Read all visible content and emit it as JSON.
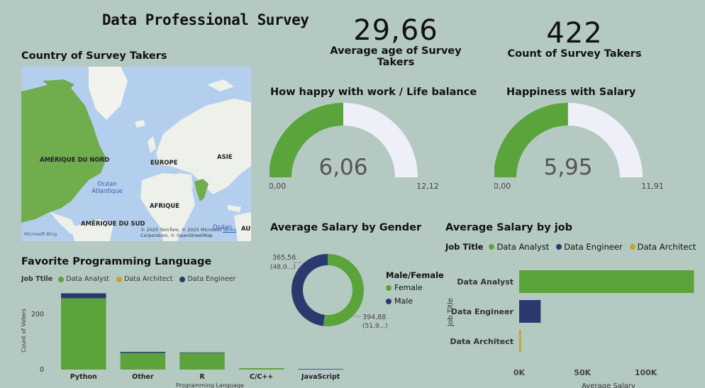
{
  "title": "Data Professional Survey",
  "kpis": {
    "age": {
      "value": "29,66",
      "label": "Average age of Survey Takers"
    },
    "count": {
      "value": "422",
      "label": "Count of Survey Takers"
    }
  },
  "map": {
    "title": "Country of Survey Takers",
    "labels": {
      "north_america": "AMÉRIQUE DU NORD",
      "europe": "EUROPE",
      "asia": "ASIE",
      "africa": "AFRIQUE",
      "south_america": "AMÉRIQUE DU SUD",
      "australia": "AUS",
      "atlantic": "Océan Atlantique",
      "ocean2": "Océan"
    },
    "attribution": "© 2025 TomTom, © 2025 Microsoft Corporation, © OpenStreetMap",
    "terms": "Terms",
    "brand": "Microsoft Bing"
  },
  "colors": {
    "analyst": "#5ba33b",
    "engineer": "#2b3a6e",
    "architect": "#c9a227",
    "gauge_rest": "#efeff9",
    "background": "#b5c9c3"
  },
  "chart_data": [
    {
      "type": "gauge",
      "title": "How happy with work / Life balance",
      "value": 6.06,
      "value_label": "6,06",
      "min": 0,
      "min_label": "0,00",
      "max": 12.12,
      "max_label": "12,12"
    },
    {
      "type": "gauge",
      "title": "Happiness with Salary",
      "value": 5.95,
      "value_label": "5,95",
      "min": 0,
      "min_label": "0,00",
      "max": 11.91,
      "max_label": "11,91"
    },
    {
      "type": "pie",
      "title": "Average Salary by Gender",
      "legend_title": "Male/Female",
      "slices": [
        {
          "name": "Female",
          "value": 394.88,
          "label": "394,88",
          "sublabel": "(51,9...)",
          "color": "#5ba33b"
        },
        {
          "name": "Male",
          "value": 365.56,
          "label": "365,56",
          "sublabel": "(48,0...)",
          "color": "#2b3a6e"
        }
      ]
    },
    {
      "type": "bar",
      "orientation": "vertical",
      "stacked": true,
      "title": "Favorite Programming Language",
      "legend_title": "Job Ttile",
      "xlabel": "Programming Language",
      "ylabel": "Count of Voters",
      "ylim": [
        0,
        290
      ],
      "yticks": [
        0,
        200
      ],
      "categories": [
        "Python",
        "Other",
        "R",
        "C/C++",
        "JavaScript"
      ],
      "series": [
        {
          "name": "Data Analyst",
          "color": "#5ba33b",
          "values": [
            258,
            60,
            60,
            5,
            0
          ]
        },
        {
          "name": "Data Architect",
          "color": "#c9a227",
          "values": [
            0,
            0,
            0,
            0,
            0
          ]
        },
        {
          "name": "Data Engineer",
          "color": "#2b3a6e",
          "values": [
            18,
            4,
            2,
            0,
            2
          ]
        }
      ]
    },
    {
      "type": "bar",
      "orientation": "horizontal",
      "title": "Average Salary by job",
      "legend_title": "Job Title",
      "xlabel": "Average Salary",
      "ylabel": "Job Title",
      "xlim": [
        0,
        140000
      ],
      "xticks": [
        {
          "v": 0,
          "label": "0K"
        },
        {
          "v": 50000,
          "label": "50K"
        },
        {
          "v": 100000,
          "label": "100K"
        }
      ],
      "legend": [
        {
          "name": "Data Analyst",
          "color": "#5ba33b"
        },
        {
          "name": "Data Engineer",
          "color": "#2b3a6e"
        },
        {
          "name": "Data Architect",
          "color": "#c9a227"
        }
      ],
      "categories": [
        "Data Analyst",
        "Data Engineer",
        "Data Architect"
      ],
      "values": [
        138000,
        17000,
        1500
      ],
      "colors": [
        "#5ba33b",
        "#2b3a6e",
        "#c9a227"
      ]
    }
  ]
}
